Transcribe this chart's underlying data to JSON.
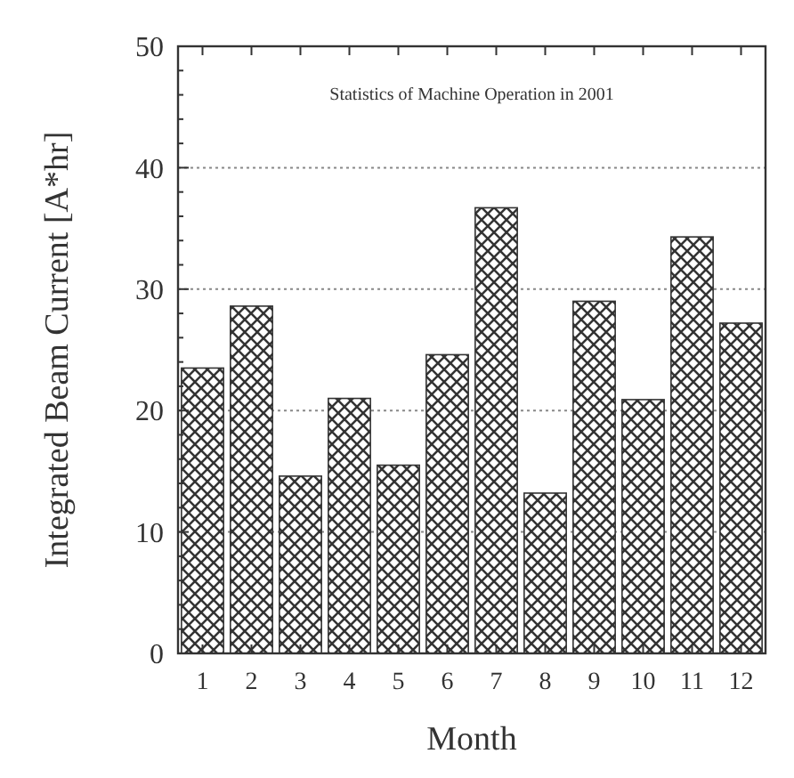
{
  "chart_data": {
    "type": "bar",
    "title": "Statistics of Machine Operation in 2001",
    "xlabel": "Month",
    "ylabel": "Integrated Beam Current [A*hr]",
    "categories": [
      "1",
      "2",
      "3",
      "4",
      "5",
      "6",
      "7",
      "8",
      "9",
      "10",
      "11",
      "12"
    ],
    "values": [
      23.5,
      28.6,
      14.6,
      21.0,
      15.5,
      24.6,
      36.7,
      13.2,
      29.0,
      20.9,
      34.3,
      27.2
    ],
    "color": "#333333",
    "ylim": [
      0,
      50
    ],
    "yticks": [
      0,
      {
        "value": 2,
        "label": null
      },
      {
        "value": 4,
        "label": null
      },
      {
        "value": 6,
        "label": null
      },
      {
        "value": 8,
        "label": null
      },
      10,
      {
        "value": 12,
        "label": null
      },
      {
        "value": 14,
        "label": null
      },
      {
        "value": 16,
        "label": null
      },
      {
        "value": 18,
        "label": null
      },
      20,
      {
        "value": 22,
        "label": null
      },
      {
        "value": 24,
        "label": null
      },
      {
        "value": 26,
        "label": null
      },
      {
        "value": 28,
        "label": null
      },
      30,
      {
        "value": 32,
        "label": null
      },
      {
        "value": 34,
        "label": null
      },
      {
        "value": 36,
        "label": null
      },
      {
        "value": 38,
        "label": null
      },
      40,
      {
        "value": 42,
        "label": null
      },
      {
        "value": 44,
        "label": null
      },
      {
        "value": 46,
        "label": null
      },
      {
        "value": 48,
        "label": null
      },
      50
    ],
    "grid": "y"
  }
}
